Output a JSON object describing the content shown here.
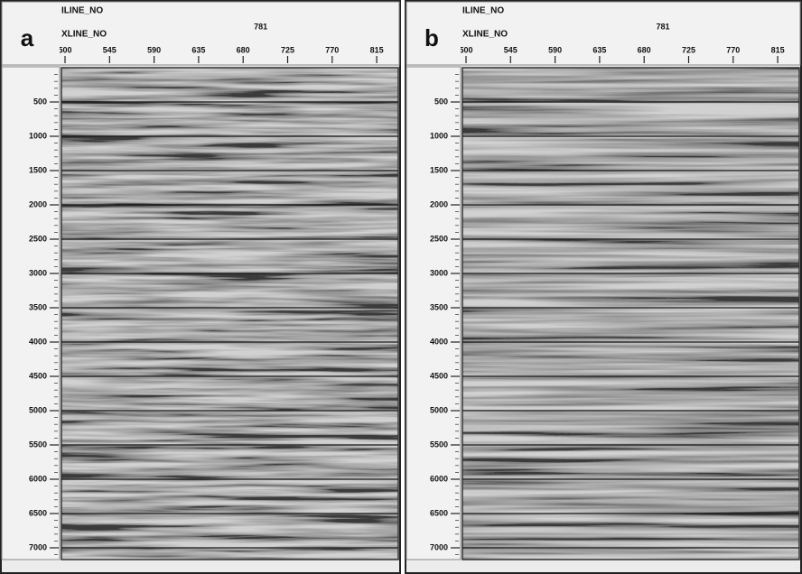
{
  "panels": [
    {
      "label": "a",
      "iline_label": "ILINE_NO",
      "iline_value": 781,
      "xline_label": "XLINE_NO",
      "xline_ticks": [
        500,
        545,
        590,
        635,
        680,
        725,
        770,
        815
      ],
      "time_ticks": [
        500,
        1000,
        1500,
        2000,
        2500,
        3000,
        3500,
        4000,
        4500,
        5000,
        5500,
        6000,
        6500,
        7000
      ]
    },
    {
      "label": "b",
      "iline_label": "ILINE_NO",
      "iline_value": 781,
      "xline_label": "XLINE_NO",
      "xline_ticks": [
        500,
        545,
        590,
        635,
        680,
        725,
        770,
        815
      ],
      "time_ticks": [
        500,
        1000,
        1500,
        2000,
        2500,
        3000,
        3500,
        4000,
        4500,
        5000,
        5500,
        6000,
        6500,
        7000
      ]
    }
  ]
}
